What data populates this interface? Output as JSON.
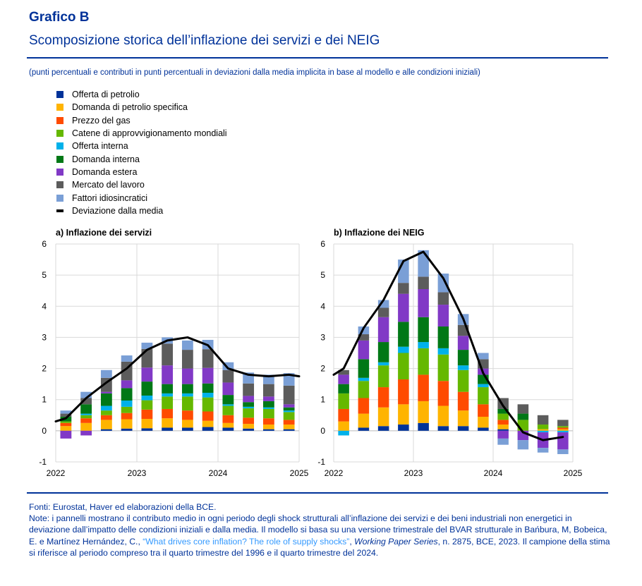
{
  "header": {
    "title": "Grafico B",
    "subtitle": "Scomposizione storica dell’inflazione dei servizi e dei NEIG",
    "units": "(punti percentuali e contributi in punti percentuali in deviazioni dalla media implicita in base al modello e alle condizioni iniziali)"
  },
  "legend": [
    {
      "label": "Offerta di petrolio",
      "color": "#003299",
      "kind": "box"
    },
    {
      "label": "Domanda di petrolio specifica",
      "color": "#ffb400",
      "kind": "box"
    },
    {
      "label": "Prezzo del gas",
      "color": "#ff4b00",
      "kind": "box"
    },
    {
      "label": "Catene di approvvigionamento mondiali",
      "color": "#65b800",
      "kind": "box"
    },
    {
      "label": "Offerta interna",
      "color": "#00b1ea",
      "kind": "box"
    },
    {
      "label": "Domanda interna",
      "color": "#007816",
      "kind": "box"
    },
    {
      "label": "Domanda estera",
      "color": "#8139c6",
      "kind": "box"
    },
    {
      "label": "Mercato del lavoro",
      "color": "#5c5c5c",
      "kind": "box"
    },
    {
      "label": "Fattori idiosincratici",
      "color": "#7a9fd6",
      "kind": "box"
    },
    {
      "label": "Deviazione dalla media",
      "color": "#000000",
      "kind": "line"
    }
  ],
  "chart_data": [
    {
      "type": "bar",
      "stacked": true,
      "title": "a) Inflazione dei servizi",
      "ylim": [
        -1,
        6
      ],
      "yticks": [
        "-1",
        "0",
        "1",
        "2",
        "3",
        "4",
        "5",
        "6"
      ],
      "xlim": [
        2022,
        2025
      ],
      "xticks": [
        "2022",
        "2023",
        "2024",
        "2025"
      ],
      "x": [
        2022.125,
        2022.375,
        2022.625,
        2022.875,
        2023.125,
        2023.375,
        2023.625,
        2023.875,
        2024.125,
        2024.375,
        2024.625,
        2024.875
      ],
      "series": [
        {
          "name": "Offerta di petrolio",
          "values": [
            0.0,
            0.0,
            0.05,
            0.07,
            0.08,
            0.1,
            0.1,
            0.12,
            0.1,
            0.07,
            0.05,
            0.05
          ]
        },
        {
          "name": "Domanda di petrolio specifica",
          "values": [
            0.15,
            0.25,
            0.3,
            0.3,
            0.3,
            0.3,
            0.25,
            0.2,
            0.15,
            0.15,
            0.15,
            0.15
          ]
        },
        {
          "name": "Prezzo del gas",
          "values": [
            0.1,
            0.15,
            0.15,
            0.2,
            0.3,
            0.3,
            0.3,
            0.3,
            0.25,
            0.2,
            0.2,
            0.15
          ]
        },
        {
          "name": "Catene di approvvigionamento mondiali",
          "values": [
            0.05,
            0.1,
            0.15,
            0.2,
            0.3,
            0.4,
            0.45,
            0.45,
            0.3,
            0.3,
            0.3,
            0.25
          ]
        },
        {
          "name": "Offerta interna",
          "values": [
            0.0,
            0.05,
            0.15,
            0.2,
            0.15,
            0.1,
            0.1,
            0.15,
            0.05,
            0.05,
            0.05,
            0.05
          ]
        },
        {
          "name": "Domanda interna",
          "values": [
            0.15,
            0.3,
            0.4,
            0.4,
            0.45,
            0.3,
            0.3,
            0.3,
            0.3,
            0.15,
            0.2,
            0.1
          ]
        },
        {
          "name": "Domanda estera",
          "values": [
            -0.25,
            -0.15,
            0.05,
            0.25,
            0.45,
            0.6,
            0.5,
            0.5,
            0.4,
            0.2,
            0.15,
            0.1
          ]
        },
        {
          "name": "Mercato del lavoro",
          "values": [
            0.1,
            0.2,
            0.45,
            0.6,
            0.6,
            0.7,
            0.6,
            0.6,
            0.4,
            0.4,
            0.4,
            0.6
          ]
        },
        {
          "name": "Fattori idiosincratici",
          "values": [
            0.1,
            0.2,
            0.25,
            0.2,
            0.2,
            0.2,
            0.3,
            0.3,
            0.25,
            0.35,
            0.3,
            0.4
          ]
        }
      ],
      "line": {
        "name": "Deviazione dalla media",
        "x": [
          2022.0,
          2022.125,
          2022.375,
          2022.625,
          2022.875,
          2023.125,
          2023.375,
          2023.625,
          2023.875,
          2024.125,
          2024.375,
          2024.625,
          2024.875,
          2025.0
        ],
        "values": [
          0.3,
          0.4,
          1.05,
          1.55,
          2.0,
          2.6,
          2.9,
          3.0,
          2.75,
          2.0,
          1.8,
          1.75,
          1.8,
          1.75
        ]
      }
    },
    {
      "type": "bar",
      "stacked": true,
      "title": "b) Inflazione dei NEIG",
      "ylim": [
        -1,
        6
      ],
      "yticks": [
        "-1",
        "0",
        "1",
        "2",
        "3",
        "4",
        "5",
        "6"
      ],
      "xlim": [
        2022,
        2025
      ],
      "xticks": [
        "2022",
        "2023",
        "2024",
        "2025"
      ],
      "x": [
        2022.125,
        2022.375,
        2022.625,
        2022.875,
        2023.125,
        2023.375,
        2023.625,
        2023.875,
        2024.125,
        2024.375,
        2024.625,
        2024.875
      ],
      "series": [
        {
          "name": "Offerta di petrolio",
          "values": [
            0.0,
            0.1,
            0.15,
            0.2,
            0.25,
            0.15,
            0.15,
            0.1,
            0.05,
            0.0,
            0.0,
            0.0
          ]
        },
        {
          "name": "Domanda di petrolio specifica",
          "values": [
            0.3,
            0.45,
            0.6,
            0.65,
            0.7,
            0.65,
            0.5,
            0.35,
            0.15,
            0.0,
            0.05,
            0.05
          ]
        },
        {
          "name": "Prezzo del gas",
          "values": [
            0.4,
            0.5,
            0.65,
            0.8,
            0.85,
            0.8,
            0.6,
            0.4,
            0.15,
            0.0,
            0.0,
            0.05
          ]
        },
        {
          "name": "Catene di approvvigionamento mondiali",
          "values": [
            0.5,
            0.55,
            0.7,
            0.85,
            0.85,
            0.85,
            0.7,
            0.55,
            0.2,
            0.35,
            0.15,
            0.05
          ]
        },
        {
          "name": "Offerta interna",
          "values": [
            -0.15,
            0.1,
            0.1,
            0.2,
            0.2,
            0.2,
            0.15,
            0.1,
            0.0,
            0.0,
            -0.05,
            -0.05
          ]
        },
        {
          "name": "Domanda interna",
          "values": [
            0.3,
            0.6,
            0.65,
            0.8,
            0.8,
            0.7,
            0.5,
            0.3,
            0.15,
            0.2,
            0.0,
            0.0
          ]
        },
        {
          "name": "Domanda estera",
          "values": [
            0.3,
            0.6,
            0.8,
            0.9,
            0.9,
            0.7,
            0.45,
            0.2,
            -0.25,
            -0.3,
            -0.5,
            -0.55
          ]
        },
        {
          "name": "Mercato del lavoro",
          "values": [
            0.15,
            0.2,
            0.3,
            0.35,
            0.4,
            0.4,
            0.35,
            0.3,
            0.35,
            0.3,
            0.3,
            0.2
          ]
        },
        {
          "name": "Fattori idiosincratici",
          "values": [
            0.0,
            0.25,
            0.25,
            0.75,
            0.85,
            0.6,
            0.35,
            0.2,
            -0.2,
            -0.3,
            -0.15,
            -0.15
          ]
        }
      ],
      "line": {
        "name": "Deviazione dalla media",
        "x": [
          2022.0,
          2022.125,
          2022.375,
          2022.625,
          2022.875,
          2023.125,
          2023.375,
          2023.625,
          2023.875,
          2024.125,
          2024.375,
          2024.625,
          2024.875
        ],
        "values": [
          1.8,
          2.0,
          3.3,
          4.2,
          5.45,
          5.75,
          4.9,
          3.6,
          1.85,
          0.8,
          -0.05,
          -0.3,
          -0.2
        ]
      }
    }
  ],
  "notes": {
    "sources": "Fonti: Eurostat, Haver ed elaborazioni della BCE.",
    "note_prefix": "Note: i pannelli mostrano il contributo medio in ogni periodo degli shock strutturali all’inflazione dei servizi e dei beni industriali non energetici in deviazione dall’impatto delle condizioni iniziali e dalla media. Il modello si basa su una versione trimestrale del BVAR strutturale in Bańbura, M, Bobeica, E. e Martínez Hernández, C., ",
    "link_text": "“What drives core inflation? The role of supply shocks”",
    "note_mid": ", ",
    "series_name": "Working Paper Series",
    "note_suffix": ", n. 2875, BCE, 2023. Il campione della stima si riferisce al periodo compreso tra il quarto trimestre del 1996 e il quarto trimestre del 2024."
  }
}
